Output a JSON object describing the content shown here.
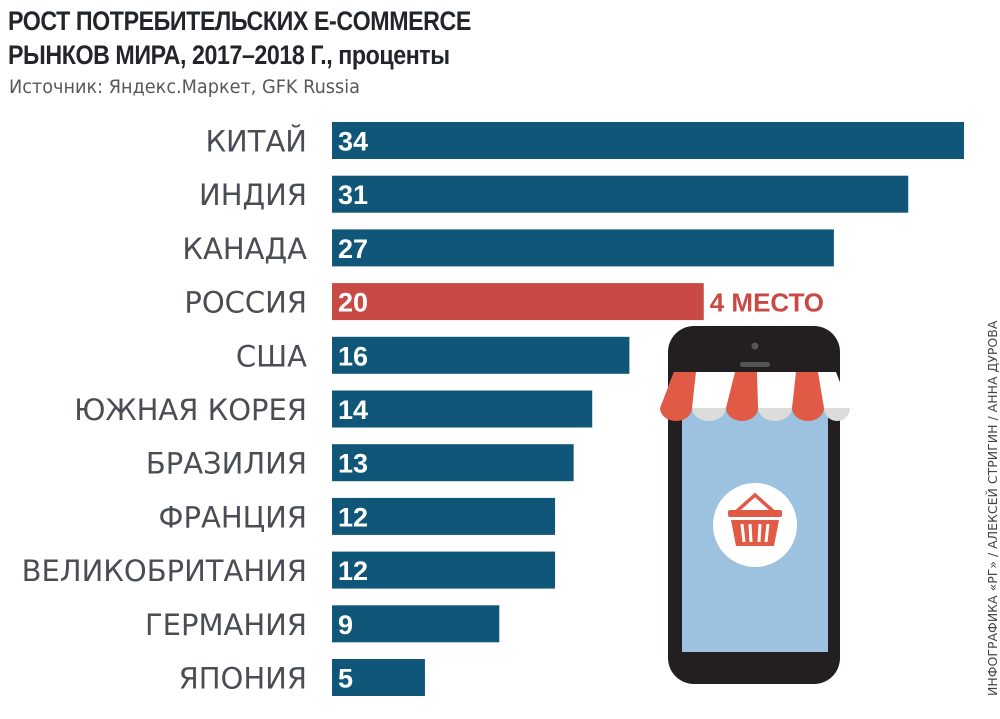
{
  "title_line1": "РОСТ ПОТРЕБИТЕЛЬСКИХ E-COMMERCE",
  "title_line2": "РЫНКОВ МИРА, 2017–2018 Г., проценты",
  "source": "Источник: Яндекс.Маркет, GFK Russia",
  "credit": "ИНФОГРАФИКА «РГ» / АЛЕКСЕЙ СТРИГИН / АННА ДУРОВА",
  "colors": {
    "bar": "#0f5678",
    "highlight": "#c94a45",
    "label": "#4a4e54",
    "value_text": "#ffffff"
  },
  "chart_data": {
    "type": "bar",
    "orientation": "horizontal",
    "categories": [
      "КИТАЙ",
      "ИНДИЯ",
      "КАНАДА",
      "РОССИЯ",
      "США",
      "ЮЖНАЯ КОРЕЯ",
      "БРАЗИЛИЯ",
      "ФРАНЦИЯ",
      "ВЕЛИКОБРИТАНИЯ",
      "ГЕРМАНИЯ",
      "ЯПОНИЯ"
    ],
    "values": [
      34,
      31,
      27,
      20,
      16,
      14,
      13,
      12,
      12,
      9,
      5
    ],
    "highlight_index": 3,
    "annotation": "4 МЕСТО",
    "xlim": [
      0,
      34
    ]
  },
  "illustration": {
    "icon": "smartphone-shop-basket-icon"
  }
}
